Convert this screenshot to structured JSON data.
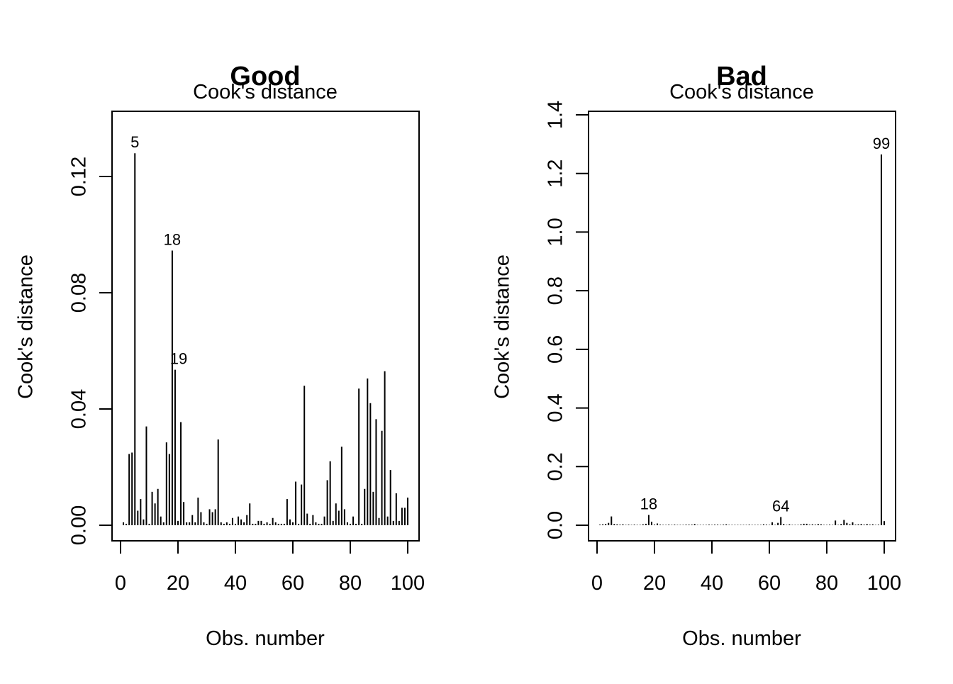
{
  "chart_data": [
    {
      "type": "bar",
      "title": "Good",
      "subtitle": "Cook's distance",
      "xlabel": "Obs. number",
      "ylabel": "Cook's distance",
      "xlim": [
        0,
        100
      ],
      "ylim": [
        0,
        0.14
      ],
      "grid": false,
      "x_ticks": [
        0,
        20,
        40,
        60,
        80,
        100
      ],
      "x_tick_labels": [
        "0",
        "20",
        "40",
        "60",
        "80",
        "100"
      ],
      "y_ticks": [
        0,
        0.04,
        0.08,
        0.12
      ],
      "y_tick_labels": [
        "0.00",
        "0.04",
        "0.08",
        "0.12"
      ],
      "x": [
        1,
        2,
        3,
        4,
        5,
        6,
        7,
        8,
        9,
        10,
        11,
        12,
        13,
        14,
        15,
        16,
        17,
        18,
        19,
        20,
        21,
        22,
        23,
        24,
        25,
        26,
        27,
        28,
        29,
        30,
        31,
        32,
        33,
        34,
        35,
        36,
        37,
        38,
        39,
        40,
        41,
        42,
        43,
        44,
        45,
        46,
        47,
        48,
        49,
        50,
        51,
        52,
        53,
        54,
        55,
        56,
        57,
        58,
        59,
        60,
        61,
        62,
        63,
        64,
        65,
        66,
        67,
        68,
        69,
        70,
        71,
        72,
        73,
        74,
        75,
        76,
        77,
        78,
        79,
        80,
        81,
        82,
        83,
        84,
        85,
        86,
        87,
        88,
        89,
        90,
        91,
        92,
        93,
        94,
        95,
        96,
        97,
        98,
        99,
        100
      ],
      "values": [
        0.001,
        0.0005,
        0.0245,
        0.025,
        0.128,
        0.005,
        0.009,
        0.002,
        0.034,
        0.0005,
        0.0115,
        0.0075,
        0.0125,
        0.003,
        0.001,
        0.0285,
        0.0245,
        0.0945,
        0.0535,
        0.0015,
        0.0355,
        0.008,
        0.001,
        0.001,
        0.0035,
        0.001,
        0.0095,
        0.0045,
        0.001,
        0.0005,
        0.0055,
        0.0045,
        0.0055,
        0.0295,
        0.001,
        0.0005,
        0.001,
        0.0005,
        0.0025,
        0.0005,
        0.003,
        0.002,
        0.001,
        0.0035,
        0.0075,
        0.0005,
        0.0005,
        0.0015,
        0.0015,
        0.0005,
        0.001,
        0.0005,
        0.0025,
        0.001,
        0.0005,
        0.0005,
        0.0005,
        0.009,
        0.002,
        0.001,
        0.015,
        0.0005,
        0.014,
        0.048,
        0.004,
        0.0005,
        0.0035,
        0.001,
        0.0005,
        0.0005,
        0.003,
        0.0155,
        0.022,
        0.0015,
        0.0075,
        0.005,
        0.027,
        0.0055,
        0.001,
        0.0005,
        0.003,
        0.0005,
        0.047,
        0.0005,
        0.0125,
        0.0505,
        0.042,
        0.0115,
        0.0365,
        0.0025,
        0.0325,
        0.053,
        0.003,
        0.019,
        0.0015,
        0.011,
        0.0015,
        0.006,
        0.006,
        0.0095
      ],
      "annotations": [
        {
          "x": 5,
          "y": 0.128,
          "label": "5"
        },
        {
          "x": 18,
          "y": 0.0945,
          "label": "18"
        },
        {
          "x": 19,
          "y": 0.0535,
          "label": "19"
        }
      ]
    },
    {
      "type": "bar",
      "title": "Bad",
      "subtitle": "Cook's distance",
      "xlabel": "Obs. number",
      "ylabel": "Cook's distance",
      "xlim": [
        0,
        100
      ],
      "ylim": [
        0,
        1.4
      ],
      "grid": false,
      "x_ticks": [
        0,
        20,
        40,
        60,
        80,
        100
      ],
      "x_tick_labels": [
        "0",
        "20",
        "40",
        "60",
        "80",
        "100"
      ],
      "y_ticks": [
        0,
        0.2,
        0.4,
        0.6,
        0.8,
        1.0,
        1.2,
        1.4
      ],
      "y_tick_labels": [
        "0.0",
        "0.2",
        "0.4",
        "0.6",
        "0.8",
        "1.0",
        "1.2",
        "1.4"
      ],
      "x": [
        1,
        2,
        3,
        4,
        5,
        6,
        7,
        8,
        9,
        10,
        11,
        12,
        13,
        14,
        15,
        16,
        17,
        18,
        19,
        20,
        21,
        22,
        23,
        24,
        25,
        26,
        27,
        28,
        29,
        30,
        31,
        32,
        33,
        34,
        35,
        36,
        37,
        38,
        39,
        40,
        41,
        42,
        43,
        44,
        45,
        46,
        47,
        48,
        49,
        50,
        51,
        52,
        53,
        54,
        55,
        56,
        57,
        58,
        59,
        60,
        61,
        62,
        63,
        64,
        65,
        66,
        67,
        68,
        69,
        70,
        71,
        72,
        73,
        74,
        75,
        76,
        77,
        78,
        79,
        80,
        81,
        82,
        83,
        84,
        85,
        86,
        87,
        88,
        89,
        90,
        91,
        92,
        93,
        94,
        95,
        96,
        97,
        98,
        99,
        100
      ],
      "values": [
        0.002,
        0.003,
        0.004,
        0.008,
        0.03,
        0.004,
        0.003,
        0.002,
        0.003,
        0.001,
        0.002,
        0.001,
        0.002,
        0.001,
        0.001,
        0.003,
        0.005,
        0.035,
        0.012,
        0.002,
        0.006,
        0.002,
        0.001,
        0.001,
        0.002,
        0.001,
        0.002,
        0.001,
        0.001,
        0.001,
        0.002,
        0.002,
        0.002,
        0.004,
        0.001,
        0.001,
        0.001,
        0.001,
        0.002,
        0.001,
        0.002,
        0.002,
        0.001,
        0.002,
        0.003,
        0.001,
        0.001,
        0.001,
        0.001,
        0.001,
        0.001,
        0.001,
        0.002,
        0.001,
        0.001,
        0.001,
        0.001,
        0.003,
        0.002,
        0.001,
        0.01,
        0.001,
        0.008,
        0.028,
        0.004,
        0.001,
        0.003,
        0.001,
        0.001,
        0.001,
        0.003,
        0.005,
        0.005,
        0.002,
        0.003,
        0.002,
        0.004,
        0.003,
        0.001,
        0.001,
        0.002,
        0.001,
        0.016,
        0.001,
        0.004,
        0.018,
        0.008,
        0.003,
        0.01,
        0.002,
        0.003,
        0.004,
        0.002,
        0.004,
        0.002,
        0.003,
        0.001,
        0.002,
        1.265,
        0.014
      ],
      "annotations": [
        {
          "x": 18,
          "y": 0.035,
          "label": "18"
        },
        {
          "x": 64,
          "y": 0.028,
          "label": "64"
        },
        {
          "x": 99,
          "y": 1.265,
          "label": "99"
        }
      ]
    }
  ]
}
